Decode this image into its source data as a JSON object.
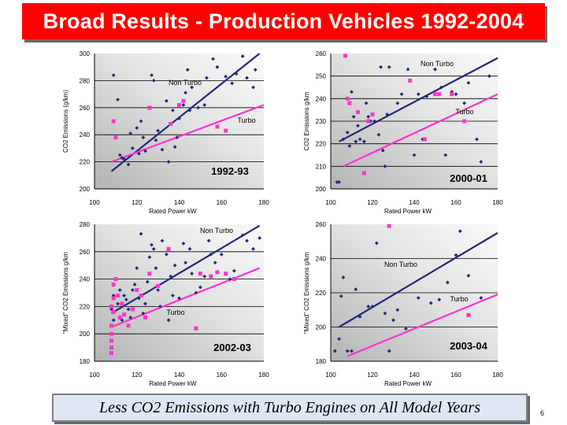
{
  "slide": {
    "title": "Broad Results - Production Vehicles 1992-2004",
    "footer": "Less CO2 Emissions with Turbo Engines on All Model Years",
    "page_number": "6"
  },
  "colors": {
    "title_bg": "#ff0000",
    "non_turbo": "#1f2a7a",
    "turbo": "#ff33cc",
    "plot_bg": "gradient-gray"
  },
  "chart_data": [
    {
      "type": "scatter",
      "label": "1992-93",
      "xlabel": "Rated Power kW",
      "ylabel": "CO2 Emissions (g/km)",
      "xlim": [
        100,
        180
      ],
      "ylim": [
        200,
        300
      ],
      "xticks": [
        "100",
        "120",
        "140",
        "160",
        "180"
      ],
      "yticks": [
        "200",
        "220",
        "240",
        "260",
        "280",
        "300"
      ],
      "series": [
        {
          "name": "Non Turbo",
          "fit": [
            [
              108,
              213
            ],
            [
              178,
              300
            ]
          ],
          "points": [
            [
              109,
              284
            ],
            [
              111,
              266
            ],
            [
              112,
              225
            ],
            [
              113,
              223
            ],
            [
              114,
              222
            ],
            [
              116,
              218
            ],
            [
              117,
              241
            ],
            [
              118,
              230
            ],
            [
              120,
              245
            ],
            [
              121,
              226
            ],
            [
              122,
              250
            ],
            [
              123,
              238
            ],
            [
              124,
              228
            ],
            [
              127,
              284
            ],
            [
              128,
              280
            ],
            [
              129,
              236
            ],
            [
              130,
              243
            ],
            [
              132,
              229
            ],
            [
              134,
              265
            ],
            [
              135,
              220
            ],
            [
              136,
              248
            ],
            [
              137,
              258
            ],
            [
              138,
              231
            ],
            [
              139,
              238
            ],
            [
              140,
              252
            ],
            [
              142,
              262
            ],
            [
              143,
              271
            ],
            [
              144,
              288
            ],
            [
              145,
              258
            ],
            [
              146,
              275
            ],
            [
              149,
              260
            ],
            [
              152,
              262
            ],
            [
              153,
              282
            ],
            [
              156,
              296
            ],
            [
              158,
              290
            ],
            [
              162,
              283
            ],
            [
              165,
              278
            ],
            [
              167,
              285
            ],
            [
              170,
              298
            ],
            [
              172,
              282
            ],
            [
              175,
              275
            ],
            [
              176,
              288
            ]
          ]
        },
        {
          "name": "Turbo",
          "fit": [
            [
              108,
              220
            ],
            [
              180,
              262
            ]
          ],
          "points": [
            [
              109,
              250
            ],
            [
              110,
              238
            ],
            [
              126,
              260
            ],
            [
              136,
              248
            ],
            [
              140,
              262
            ],
            [
              142,
              265
            ],
            [
              158,
              246
            ],
            [
              162,
              243
            ]
          ]
        }
      ],
      "annotations": [
        "Non Turbo",
        "Turbo"
      ]
    },
    {
      "type": "scatter",
      "label": "2000-01",
      "xlabel": "Rated Power kW",
      "ylabel": "CO2 Emissions g/km",
      "xlim": [
        100,
        180
      ],
      "ylim": [
        200,
        260
      ],
      "xticks": [
        "100",
        "120",
        "140",
        "160",
        "180"
      ],
      "yticks": [
        "200",
        "210",
        "220",
        "230",
        "240",
        "250",
        "260"
      ],
      "series": [
        {
          "name": "Non Turbo",
          "fit": [
            [
              104,
              221
            ],
            [
              180,
              258
            ]
          ],
          "points": [
            [
              103,
              203
            ],
            [
              104,
              203
            ],
            [
              106,
              222
            ],
            [
              108,
              225
            ],
            [
              109,
              219
            ],
            [
              110,
              243
            ],
            [
              111,
              232
            ],
            [
              112,
              221
            ],
            [
              113,
              228
            ],
            [
              114,
              222
            ],
            [
              116,
              221
            ],
            [
              117,
              238
            ],
            [
              118,
              232
            ],
            [
              119,
              230
            ],
            [
              121,
              230
            ],
            [
              123,
              224
            ],
            [
              124,
              254
            ],
            [
              125,
              217
            ],
            [
              126,
              210
            ],
            [
              127,
              233
            ],
            [
              128,
              254
            ],
            [
              132,
              238
            ],
            [
              134,
              242
            ],
            [
              137,
              253
            ],
            [
              140,
              215
            ],
            [
              142,
              242
            ],
            [
              144,
              222
            ],
            [
              146,
              241
            ],
            [
              150,
              253
            ],
            [
              153,
              245
            ],
            [
              155,
              215
            ],
            [
              158,
              243
            ],
            [
              160,
              242
            ],
            [
              164,
              238
            ],
            [
              166,
              247
            ],
            [
              170,
              222
            ],
            [
              172,
              212
            ],
            [
              176,
              250
            ]
          ]
        },
        {
          "name": "Turbo",
          "fit": [
            [
              106,
              210
            ],
            [
              180,
              242
            ]
          ],
          "points": [
            [
              107,
              259
            ],
            [
              108,
              240
            ],
            [
              109,
              238
            ],
            [
              113,
              234
            ],
            [
              116,
              207
            ],
            [
              118,
              230
            ],
            [
              120,
              233
            ],
            [
              138,
              248
            ],
            [
              145,
              222
            ],
            [
              150,
              242
            ],
            [
              152,
              242
            ],
            [
              158,
              242
            ],
            [
              164,
              230
            ]
          ]
        }
      ],
      "annotations": [
        "Non Turbo",
        "Turbo"
      ]
    },
    {
      "type": "scatter",
      "label": "2002-03",
      "xlabel": "Rated Power kW",
      "ylabel": "\"Mixed\" CO2 Emissions g/km",
      "xlim": [
        100,
        180
      ],
      "ylim": [
        180,
        280
      ],
      "xticks": [
        "100",
        "120",
        "140",
        "160",
        "180"
      ],
      "yticks": [
        "180",
        "200",
        "220",
        "240",
        "260",
        "280"
      ],
      "series": [
        {
          "name": "Non Turbo",
          "fit": [
            [
              108,
              215
            ],
            [
              178,
              279
            ]
          ],
          "points": [
            [
              108,
              218
            ],
            [
              109,
              210
            ],
            [
              109,
              228
            ],
            [
              110,
              240
            ],
            [
              111,
              222
            ],
            [
              112,
              232
            ],
            [
              113,
              210
            ],
            [
              114,
              228
            ],
            [
              115,
              225
            ],
            [
              116,
              218
            ],
            [
              117,
              212
            ],
            [
              118,
              232
            ],
            [
              119,
              236
            ],
            [
              120,
              248
            ],
            [
              121,
              226
            ],
            [
              122,
              273
            ],
            [
              123,
              215
            ],
            [
              124,
              222
            ],
            [
              125,
              238
            ],
            [
              126,
              256
            ],
            [
              127,
              265
            ],
            [
              128,
              262
            ],
            [
              129,
              248
            ],
            [
              130,
              232
            ],
            [
              131,
              220
            ],
            [
              132,
              268
            ],
            [
              134,
              258
            ],
            [
              135,
              210
            ],
            [
              136,
              242
            ],
            [
              137,
              228
            ],
            [
              138,
              250
            ],
            [
              140,
              226
            ],
            [
              142,
              266
            ],
            [
              143,
              252
            ],
            [
              145,
              262
            ],
            [
              146,
              244
            ],
            [
              148,
              230
            ],
            [
              150,
              234
            ],
            [
              152,
              242
            ],
            [
              154,
              268
            ],
            [
              155,
              258
            ],
            [
              157,
              252
            ],
            [
              160,
              258
            ],
            [
              162,
              244
            ],
            [
              164,
              240
            ],
            [
              166,
              246
            ],
            [
              170,
              272
            ],
            [
              172,
              268
            ],
            [
              175,
              262
            ],
            [
              178,
              270
            ]
          ]
        },
        {
          "name": "Turbo",
          "fit": [
            [
              108,
              205
            ],
            [
              178,
              248
            ]
          ],
          "points": [
            [
              108,
              220
            ],
            [
              108,
              206
            ],
            [
              108,
              200
            ],
            [
              108,
              195
            ],
            [
              108,
              190
            ],
            [
              108,
              186
            ],
            [
              109,
              236
            ],
            [
              109,
              226
            ],
            [
              109,
              216
            ],
            [
              110,
              240
            ],
            [
              111,
              228
            ],
            [
              112,
              212
            ],
            [
              113,
              222
            ],
            [
              114,
              214
            ],
            [
              116,
              206
            ],
            [
              118,
              218
            ],
            [
              120,
              232
            ],
            [
              122,
              228
            ],
            [
              124,
              212
            ],
            [
              126,
              244
            ],
            [
              130,
              235
            ],
            [
              135,
              262
            ],
            [
              148,
              204
            ],
            [
              150,
              244
            ],
            [
              155,
              242
            ],
            [
              158,
              245
            ],
            [
              162,
              244
            ],
            [
              166,
              240
            ]
          ]
        }
      ],
      "annotations": [
        "Non Turbo",
        "Turbo"
      ]
    },
    {
      "type": "scatter",
      "label": "2003-04",
      "xlabel": "Rated Power kW",
      "ylabel": "\"Mixed\" CO2 Emissions g/km",
      "xlim": [
        100,
        180
      ],
      "ylim": [
        180,
        260
      ],
      "xticks": [
        "100",
        "120",
        "140",
        "160",
        "180"
      ],
      "yticks": [
        "180",
        "200",
        "220",
        "240",
        "260"
      ],
      "series": [
        {
          "name": "Non Turbo",
          "fit": [
            [
              104,
              200
            ],
            [
              180,
              255
            ]
          ],
          "points": [
            [
              102,
              186
            ],
            [
              104,
              193
            ],
            [
              105,
              218
            ],
            [
              106,
              229
            ],
            [
              108,
              186
            ],
            [
              110,
              186
            ],
            [
              112,
              222
            ],
            [
              114,
              206
            ],
            [
              118,
              212
            ],
            [
              120,
              212
            ],
            [
              122,
              249
            ],
            [
              126,
              208
            ],
            [
              128,
              186
            ],
            [
              130,
              204
            ],
            [
              132,
              210
            ],
            [
              136,
              199
            ],
            [
              142,
              217
            ],
            [
              148,
              214
            ],
            [
              152,
              216
            ],
            [
              156,
              226
            ],
            [
              160,
              242
            ],
            [
              162,
              256
            ],
            [
              166,
              230
            ],
            [
              172,
              217
            ]
          ]
        },
        {
          "name": "Turbo",
          "fit": [
            [
              108,
              183
            ],
            [
              180,
              219
            ]
          ],
          "points": [
            [
              128,
              259
            ],
            [
              166,
              207
            ]
          ]
        }
      ],
      "annotations": [
        "Non Turbo",
        "Turbo"
      ]
    }
  ]
}
